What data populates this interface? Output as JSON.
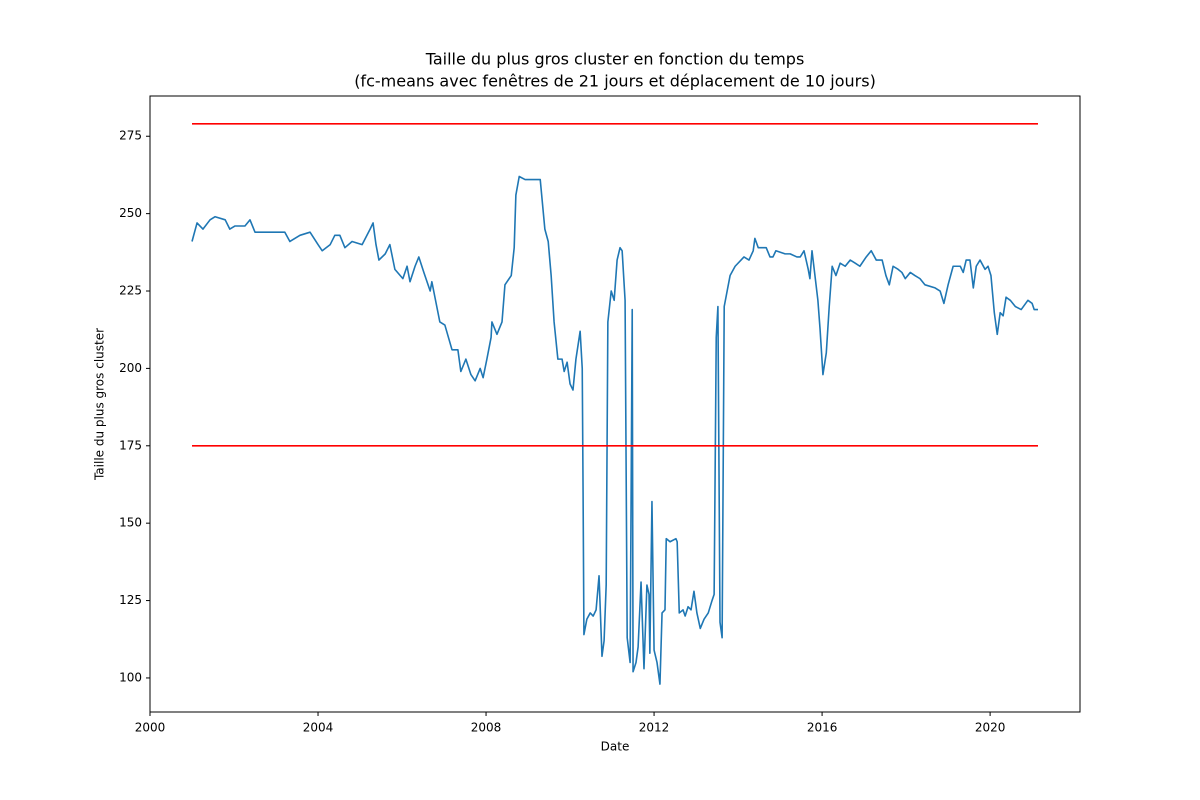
{
  "chart_data": {
    "type": "line",
    "title": "Taille du plus gros cluster en fonction du temps",
    "subtitle": "(fc-means avec fenêtres de 21 jours et déplacement de 10 jours)",
    "x_label": "Date",
    "y_label": "Taille du plus gros cluster",
    "xlim": [
      2000,
      2022.14
    ],
    "ylim": [
      89,
      288
    ],
    "xticks": [
      2000,
      2004,
      2008,
      2012,
      2016,
      2020
    ],
    "yticks": [
      100,
      125,
      150,
      175,
      200,
      225,
      250,
      275
    ],
    "grid": false,
    "series": [
      {
        "color": "#1f77b4",
        "x": [
          2001.0,
          2001.12,
          2001.26,
          2001.43,
          2001.55,
          2001.79,
          2001.9,
          2002.02,
          2002.26,
          2002.38,
          2002.5,
          2002.74,
          2003.21,
          2003.33,
          2003.57,
          2003.81,
          2004.0,
          2004.1,
          2004.29,
          2004.4,
          2004.52,
          2004.64,
          2004.81,
          2005.05,
          2005.24,
          2005.31,
          2005.38,
          2005.45,
          2005.6,
          2005.71,
          2005.83,
          2006.02,
          2006.12,
          2006.19,
          2006.31,
          2006.4,
          2006.52,
          2006.67,
          2006.71,
          2006.9,
          2007.02,
          2007.19,
          2007.33,
          2007.4,
          2007.52,
          2007.64,
          2007.74,
          2007.86,
          2007.93,
          2008.02,
          2008.12,
          2008.14,
          2008.26,
          2008.38,
          2008.45,
          2008.6,
          2008.67,
          2008.71,
          2008.79,
          2008.93,
          2009.07,
          2009.29,
          2009.4,
          2009.48,
          2009.55,
          2009.62,
          2009.71,
          2009.81,
          2009.86,
          2009.93,
          2010.0,
          2010.07,
          2010.14,
          2010.24,
          2010.29,
          2010.31,
          2010.33,
          2010.4,
          2010.48,
          2010.55,
          2010.62,
          2010.69,
          2010.76,
          2010.81,
          2010.86,
          2010.9,
          2010.98,
          2011.05,
          2011.12,
          2011.19,
          2011.24,
          2011.31,
          2011.36,
          2011.43,
          2011.48,
          2011.5,
          2011.57,
          2011.62,
          2011.69,
          2011.76,
          2011.83,
          2011.88,
          2011.9,
          2011.95,
          2012.0,
          2012.07,
          2012.14,
          2012.19,
          2012.26,
          2012.29,
          2012.38,
          2012.52,
          2012.55,
          2012.6,
          2012.69,
          2012.74,
          2012.81,
          2012.88,
          2012.95,
          2013.02,
          2013.1,
          2013.19,
          2013.29,
          2013.38,
          2013.43,
          2013.48,
          2013.52,
          2013.57,
          2013.62,
          2013.67,
          2013.74,
          2013.81,
          2013.93,
          2014.07,
          2014.14,
          2014.26,
          2014.36,
          2014.4,
          2014.48,
          2014.67,
          2014.76,
          2014.83,
          2014.9,
          2015.12,
          2015.24,
          2015.4,
          2015.48,
          2015.57,
          2015.67,
          2015.71,
          2015.76,
          2015.83,
          2015.9,
          2015.95,
          2016.02,
          2016.1,
          2016.17,
          2016.24,
          2016.33,
          2016.43,
          2016.55,
          2016.67,
          2016.79,
          2016.9,
          2017.05,
          2017.17,
          2017.29,
          2017.43,
          2017.52,
          2017.6,
          2017.69,
          2017.81,
          2017.9,
          2017.98,
          2018.1,
          2018.21,
          2018.33,
          2018.45,
          2018.69,
          2018.81,
          2018.9,
          2019.0,
          2019.12,
          2019.29,
          2019.36,
          2019.43,
          2019.52,
          2019.6,
          2019.67,
          2019.76,
          2019.88,
          2019.95,
          2020.02,
          2020.1,
          2020.17,
          2020.24,
          2020.31,
          2020.38,
          2020.48,
          2020.6,
          2020.74,
          2020.9,
          2021.0,
          2021.05,
          2021.14
        ],
        "values": [
          241,
          247,
          245,
          248,
          249,
          248,
          245,
          246,
          246,
          248,
          244,
          244,
          244,
          241,
          243,
          244,
          240,
          238,
          240,
          243,
          243,
          239,
          241,
          240,
          245,
          247,
          240,
          235,
          237,
          240,
          232,
          229,
          233,
          228,
          233,
          236,
          231,
          225,
          228,
          215,
          214,
          206,
          206,
          199,
          203,
          198,
          196,
          200,
          197,
          203,
          210,
          215,
          211,
          215,
          227,
          230,
          239,
          256,
          262,
          261,
          261,
          261,
          245,
          241,
          230,
          215,
          203,
          203,
          199,
          202,
          195,
          193,
          203,
          212,
          200,
          160,
          114,
          119,
          121,
          120,
          122,
          133,
          107,
          112,
          130,
          215,
          225,
          222,
          235,
          239,
          238,
          222,
          113,
          105,
          219,
          102,
          105,
          110,
          131,
          103,
          130,
          127,
          108,
          157,
          109,
          105,
          98,
          121,
          122,
          145,
          144,
          145,
          144,
          121,
          122,
          120,
          123,
          122,
          128,
          121,
          116,
          119,
          121,
          125,
          127,
          210,
          220,
          118,
          113,
          220,
          225,
          230,
          233,
          235,
          236,
          235,
          238,
          242,
          239,
          239,
          236,
          236,
          238,
          237,
          237,
          236,
          236,
          238,
          232,
          229,
          238,
          230,
          222,
          213,
          198,
          205,
          220,
          233,
          230,
          234,
          233,
          235,
          234,
          233,
          236,
          238,
          235,
          235,
          230,
          227,
          233,
          232,
          231,
          229,
          231,
          230,
          229,
          227,
          226,
          225,
          221,
          227,
          233,
          233,
          231,
          235,
          235,
          226,
          233,
          235,
          232,
          233,
          230,
          218,
          211,
          218,
          217,
          223,
          222,
          220,
          219,
          222,
          221,
          219,
          219
        ]
      },
      {
        "color": "#ff0000",
        "x": [
          2001.0,
          2021.14
        ],
        "values": [
          279,
          279
        ]
      },
      {
        "color": "#ff0000",
        "x": [
          2001.0,
          2021.14
        ],
        "values": [
          175,
          175
        ]
      }
    ]
  }
}
